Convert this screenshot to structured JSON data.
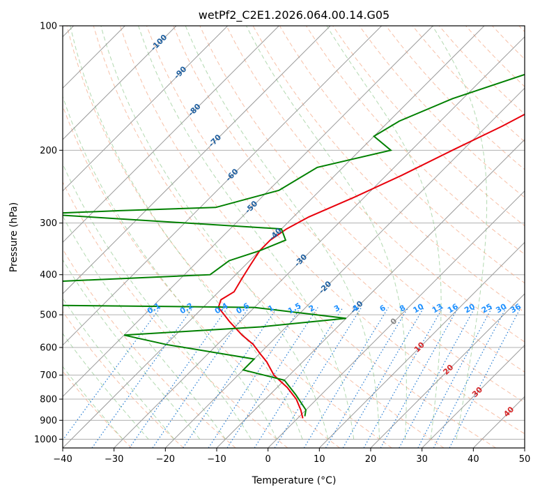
{
  "chart_data": {
    "type": "skew-t",
    "title": "wetPf2_C2E1.2026.064.00.14.G05",
    "xlabel": "Temperature (°C)",
    "ylabel": "Pressure (hPa)",
    "xlim": [
      -40,
      50
    ],
    "ylim": [
      1050,
      100
    ],
    "x_ticks": [
      "−40",
      "−30",
      "−20",
      "−10",
      "0",
      "10",
      "20",
      "30",
      "40",
      "50"
    ],
    "x_tick_values": [
      -40,
      -30,
      -20,
      -10,
      0,
      10,
      20,
      30,
      40,
      50
    ],
    "y_ticks": [
      "100",
      "200",
      "300",
      "400",
      "500",
      "600",
      "700",
      "800",
      "900",
      "1000"
    ],
    "y_tick_values": [
      100,
      200,
      300,
      400,
      500,
      600,
      700,
      800,
      900,
      1000
    ],
    "skew_degC_per_decade_visual": 45,
    "colors": {
      "temperature": "#e8000b",
      "dewpoint": "#008000",
      "dry_adiabat": "#f4a582",
      "moist_adiabat": "#7fbf7b",
      "mixing_ratio": "#1f78d1",
      "isotherm": "#999999",
      "isotherm_label": "#1f5f9f",
      "mixing_label": "#1e90ff",
      "adiabat_label": "#d62728"
    },
    "isotherm_labels": [
      "-100",
      "-90",
      "-80",
      "-70",
      "-60",
      "-50",
      "-40",
      "-30",
      "-20",
      "-10",
      "0",
      "10",
      "20",
      "30",
      "40"
    ],
    "isotherm_label_values": [
      -100,
      -90,
      -80,
      -70,
      -60,
      -50,
      -40,
      -30,
      -20,
      -10,
      0,
      10,
      20,
      30,
      40
    ],
    "mixing_ratio_labels": [
      "0.1",
      "0.2",
      "0.4",
      "0.6",
      "1",
      "1.5",
      "2",
      "3",
      "4",
      "6",
      "8",
      "10",
      "13",
      "16",
      "20",
      "25",
      "30",
      "36"
    ],
    "mixing_ratio_values": [
      0.1,
      0.2,
      0.4,
      0.6,
      1,
      1.5,
      2,
      3,
      4,
      6,
      8,
      10,
      13,
      16,
      20,
      25,
      30,
      36
    ],
    "series": [
      {
        "name": "temperature",
        "points": [
          [
            -3.5,
            100
          ],
          [
            -5,
            115
          ],
          [
            -10,
            140
          ],
          [
            -17,
            175
          ],
          [
            -22,
            200
          ],
          [
            -27,
            230
          ],
          [
            -32,
            260
          ],
          [
            -37,
            290
          ],
          [
            -39,
            310
          ],
          [
            -40,
            330
          ],
          [
            -40,
            350
          ],
          [
            -39,
            380
          ],
          [
            -38,
            410
          ],
          [
            -37,
            440
          ],
          [
            -38,
            460
          ],
          [
            -37,
            480
          ],
          [
            -32,
            520
          ],
          [
            -27,
            560
          ],
          [
            -23,
            590
          ],
          [
            -20,
            620
          ],
          [
            -17,
            650
          ],
          [
            -13,
            700
          ],
          [
            -8,
            750
          ],
          [
            -4,
            800
          ],
          [
            -1,
            850
          ],
          [
            1,
            890
          ]
        ]
      },
      {
        "name": "dewpoint",
        "points": [
          [
            -2,
            100
          ],
          [
            -10,
            110
          ],
          [
            -22,
            130
          ],
          [
            -32,
            150
          ],
          [
            -38,
            170
          ],
          [
            -40,
            185
          ],
          [
            -34,
            200
          ],
          [
            -45,
            220
          ],
          [
            -48,
            250
          ],
          [
            -57,
            275
          ],
          [
            -75,
            280
          ],
          [
            -90,
            285
          ],
          [
            -40,
            310
          ],
          [
            -37,
            330
          ],
          [
            -40,
            350
          ],
          [
            -44,
            370
          ],
          [
            -45,
            400
          ],
          [
            -82,
            420
          ],
          [
            -75,
            440
          ],
          [
            -100,
            460
          ],
          [
            -100,
            470
          ],
          [
            -30,
            480
          ],
          [
            -10,
            510
          ],
          [
            -25,
            535
          ],
          [
            -50,
            560
          ],
          [
            -40,
            590
          ],
          [
            -20,
            640
          ],
          [
            -20,
            680
          ],
          [
            -10,
            720
          ],
          [
            -5,
            780
          ],
          [
            0,
            850
          ],
          [
            1,
            880
          ]
        ]
      }
    ]
  }
}
